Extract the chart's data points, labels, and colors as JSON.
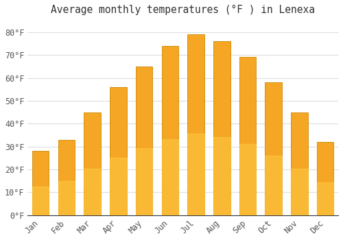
{
  "title": "Average monthly temperatures (°F ) in Lenexa",
  "months": [
    "Jan",
    "Feb",
    "Mar",
    "Apr",
    "May",
    "Jun",
    "Jul",
    "Aug",
    "Sep",
    "Oct",
    "Nov",
    "Dec"
  ],
  "values": [
    28,
    33,
    45,
    56,
    65,
    74,
    79,
    76,
    69,
    58,
    45,
    32
  ],
  "bar_color_top": "#F5A623",
  "bar_color_bottom": "#F5C842",
  "bar_edge_color": "#D4891A",
  "background_color": "#FFFFFF",
  "plot_bg_color": "#FFFFFF",
  "grid_color": "#DDDDDD",
  "ylim": [
    0,
    85
  ],
  "yticks": [
    0,
    10,
    20,
    30,
    40,
    50,
    60,
    70,
    80
  ],
  "ytick_labels": [
    "0°F",
    "10°F",
    "20°F",
    "30°F",
    "40°F",
    "50°F",
    "60°F",
    "70°F",
    "80°F"
  ],
  "title_fontsize": 10.5,
  "tick_fontsize": 8.5,
  "title_color": "#333333",
  "tick_color": "#555555",
  "bar_width": 0.65
}
